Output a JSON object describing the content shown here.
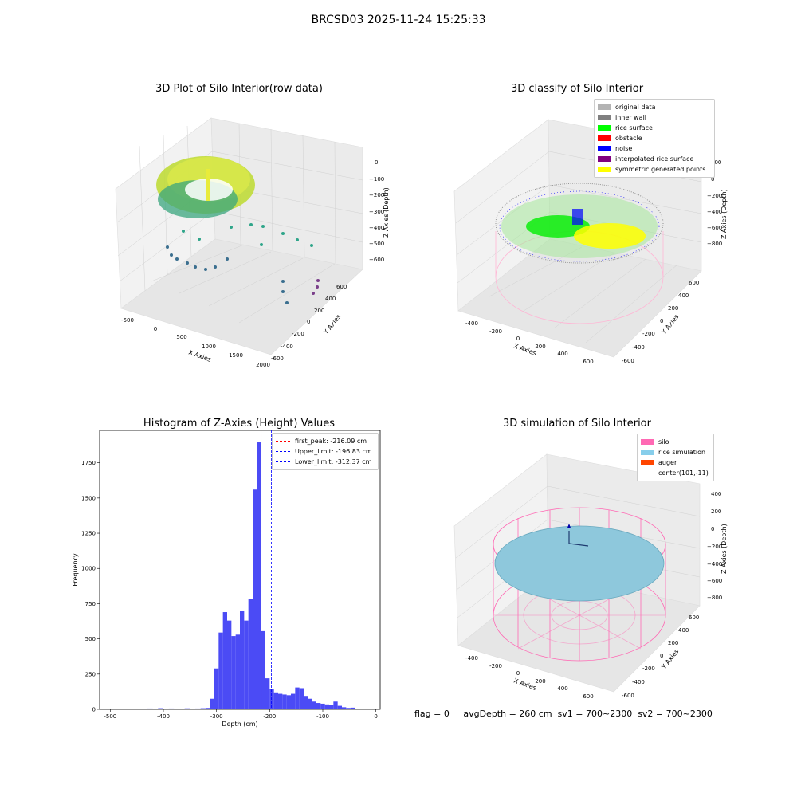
{
  "suptitle": "BRCSD03 2025-11-24 15:25:33",
  "status_text": "flag = 0     avgDepth = 260 cm  sv1 = 700~2300  sv2 = 700~2300",
  "chart_data": [
    {
      "type": "scatter",
      "title": "3D Plot of Silo Interior(row data)",
      "xlabel": "X Axies",
      "ylabel": "Y Axies",
      "zlabel": "Z Axies (Depth)",
      "x_ticks": [
        "-500",
        "0",
        "500",
        "1000",
        "1500",
        "2000"
      ],
      "y_ticks": [
        "-600",
        "-400",
        "-200",
        "0",
        "200",
        "400",
        "600"
      ],
      "z_ticks": [
        "0",
        "-100",
        "-200",
        "-300",
        "-400",
        "-500",
        "-600"
      ],
      "colormap": "viridis"
    },
    {
      "type": "scatter",
      "title": "3D classify of Silo Interior",
      "xlabel": "X Axies",
      "ylabel": "Y Axies",
      "zlabel": "Z Axies (Depth)",
      "x_ticks": [
        "-400",
        "-200",
        "0",
        "200",
        "400",
        "600"
      ],
      "y_ticks": [
        "-600",
        "-400",
        "-200",
        "0",
        "200",
        "400",
        "600"
      ],
      "z_ticks": [
        "200",
        "0",
        "-200",
        "-400",
        "-600",
        "-800"
      ],
      "legend": [
        {
          "label": "original data",
          "color": "#b3b3b3"
        },
        {
          "label": "inner wall",
          "color": "#808080"
        },
        {
          "label": "rice surface",
          "color": "#00ff00"
        },
        {
          "label": "obstacle",
          "color": "#ff0000"
        },
        {
          "label": "noise",
          "color": "#0000ff"
        },
        {
          "label": "interpolated rice surface",
          "color": "#800080"
        },
        {
          "label": "symmetric generated points",
          "color": "#ffff00"
        }
      ]
    },
    {
      "type": "bar",
      "title": "Histogram of Z-Axies (Height) Values",
      "xlabel": "Depth (cm)",
      "ylabel": "Frequency",
      "xlim": [
        -520,
        8
      ],
      "ylim": [
        0,
        1980
      ],
      "x_ticks": [
        -500,
        -400,
        -300,
        -200,
        -100,
        0
      ],
      "y_ticks": [
        0,
        250,
        500,
        750,
        1000,
        1250,
        1500,
        1750
      ],
      "bar_color": "#4b4bf5",
      "bins": [
        {
          "x0": -487,
          "x1": -477,
          "value": 5
        },
        {
          "x0": -439,
          "x1": -430,
          "value": 3
        },
        {
          "x0": -430,
          "x1": -420,
          "value": 6
        },
        {
          "x0": -420,
          "x1": -410,
          "value": 4
        },
        {
          "x0": -410,
          "x1": -400,
          "value": 8
        },
        {
          "x0": -400,
          "x1": -390,
          "value": 5
        },
        {
          "x0": -390,
          "x1": -380,
          "value": 6
        },
        {
          "x0": -380,
          "x1": -370,
          "value": 4
        },
        {
          "x0": -370,
          "x1": -360,
          "value": 5
        },
        {
          "x0": -360,
          "x1": -350,
          "value": 7
        },
        {
          "x0": -350,
          "x1": -340,
          "value": 4
        },
        {
          "x0": -340,
          "x1": -330,
          "value": 6
        },
        {
          "x0": -330,
          "x1": -320,
          "value": 8
        },
        {
          "x0": -320,
          "x1": -312,
          "value": 10
        },
        {
          "x0": -312,
          "x1": -304,
          "value": 75
        },
        {
          "x0": -304,
          "x1": -296,
          "value": 290
        },
        {
          "x0": -296,
          "x1": -288,
          "value": 545
        },
        {
          "x0": -288,
          "x1": -280,
          "value": 690
        },
        {
          "x0": -280,
          "x1": -272,
          "value": 630
        },
        {
          "x0": -272,
          "x1": -264,
          "value": 520
        },
        {
          "x0": -264,
          "x1": -256,
          "value": 530
        },
        {
          "x0": -256,
          "x1": -248,
          "value": 700
        },
        {
          "x0": -248,
          "x1": -240,
          "value": 630
        },
        {
          "x0": -240,
          "x1": -232,
          "value": 785
        },
        {
          "x0": -232,
          "x1": -224,
          "value": 1560
        },
        {
          "x0": -224,
          "x1": -216,
          "value": 1895
        },
        {
          "x0": -216,
          "x1": -208,
          "value": 555
        },
        {
          "x0": -208,
          "x1": -200,
          "value": 220
        },
        {
          "x0": -200,
          "x1": -192,
          "value": 145
        },
        {
          "x0": -192,
          "x1": -184,
          "value": 120
        },
        {
          "x0": -184,
          "x1": -176,
          "value": 110
        },
        {
          "x0": -176,
          "x1": -168,
          "value": 105
        },
        {
          "x0": -168,
          "x1": -160,
          "value": 100
        },
        {
          "x0": -160,
          "x1": -152,
          "value": 110
        },
        {
          "x0": -152,
          "x1": -144,
          "value": 155
        },
        {
          "x0": -144,
          "x1": -136,
          "value": 150
        },
        {
          "x0": -136,
          "x1": -128,
          "value": 95
        },
        {
          "x0": -128,
          "x1": -120,
          "value": 75
        },
        {
          "x0": -120,
          "x1": -112,
          "value": 55
        },
        {
          "x0": -112,
          "x1": -104,
          "value": 45
        },
        {
          "x0": -104,
          "x1": -96,
          "value": 40
        },
        {
          "x0": -96,
          "x1": -88,
          "value": 35
        },
        {
          "x0": -88,
          "x1": -80,
          "value": 30
        },
        {
          "x0": -80,
          "x1": -72,
          "value": 55
        },
        {
          "x0": -72,
          "x1": -64,
          "value": 25
        },
        {
          "x0": -64,
          "x1": -56,
          "value": 15
        },
        {
          "x0": -56,
          "x1": -48,
          "value": 10
        },
        {
          "x0": -48,
          "x1": -40,
          "value": 12
        }
      ],
      "lines": [
        {
          "label": "first_peak: -216.09 cm",
          "value": -216.09,
          "color": "#ff0000"
        },
        {
          "label": "Upper_limit: -196.83 cm",
          "value": -196.83,
          "color": "#0000ff"
        },
        {
          "label": "Lower_limit: -312.37 cm",
          "value": -312.37,
          "color": "#0000ff"
        }
      ]
    },
    {
      "type": "scatter",
      "title": "3D simulation of Silo Interior",
      "xlabel": "X Axies",
      "ylabel": "Y Axies",
      "zlabel": "Z Axies (Depth)",
      "x_ticks": [
        "-400",
        "-200",
        "0",
        "200",
        "400",
        "600"
      ],
      "y_ticks": [
        "-600",
        "-400",
        "-200",
        "0",
        "200",
        "400",
        "600"
      ],
      "z_ticks": [
        "400",
        "200",
        "0",
        "-200",
        "-400",
        "-600",
        "-800"
      ],
      "legend": [
        {
          "label": "silo",
          "color": "#ff69b4"
        },
        {
          "label": "rice simulation",
          "color": "#87ceeb"
        },
        {
          "label": "auger",
          "color": "#ff4500"
        },
        {
          "label": "center(101,-11)",
          "color": ""
        }
      ]
    }
  ]
}
